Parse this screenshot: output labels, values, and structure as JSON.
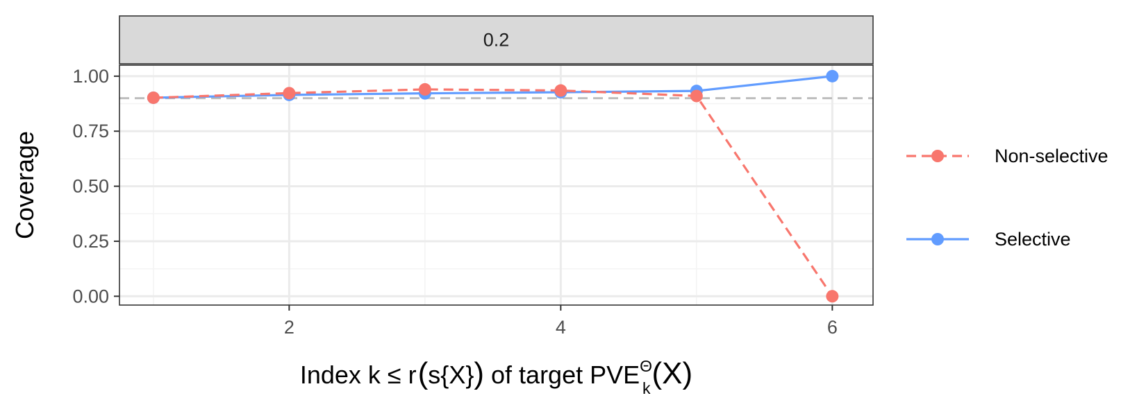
{
  "chart_data": {
    "type": "line",
    "facet_label": "0.2",
    "x": [
      1,
      2,
      3,
      4,
      5,
      6
    ],
    "xticks": [
      2,
      4,
      6
    ],
    "xtick_labels": [
      "2",
      "4",
      "6"
    ],
    "xlim": [
      0.75,
      6.3
    ],
    "yticks": [
      0,
      0.25,
      0.5,
      0.75,
      1
    ],
    "ytick_labels": [
      "0.00",
      "0.25",
      "0.50",
      "0.75",
      "1.00"
    ],
    "ylim": [
      -0.04,
      1.05
    ],
    "reference_line": 0.9,
    "ylabel": "Coverage",
    "xlabel": {
      "pre": "Index k ≤ r",
      "lparen": "(",
      "mid": "s{X}",
      "rparen": ")",
      "post": " of target PVE",
      "sup": "Θ",
      "sub": "k",
      "tail": "(X)"
    },
    "series": [
      {
        "name": "Non-selective",
        "color": "#F8766D",
        "dashed": true,
        "values": [
          0.902,
          0.923,
          0.94,
          0.935,
          0.91,
          0.0
        ]
      },
      {
        "name": "Selective",
        "color": "#619CFF",
        "dashed": false,
        "values": [
          0.902,
          0.915,
          0.922,
          0.927,
          0.933,
          1.0
        ]
      }
    ],
    "grid": true,
    "legend_position": "right",
    "colors": {
      "panel_border": "#333333",
      "strip_fill": "#d9d9d9",
      "grid_major": "#ebebeb",
      "grid_minor": "#f4f4f4",
      "reference": "#bebebe"
    }
  }
}
